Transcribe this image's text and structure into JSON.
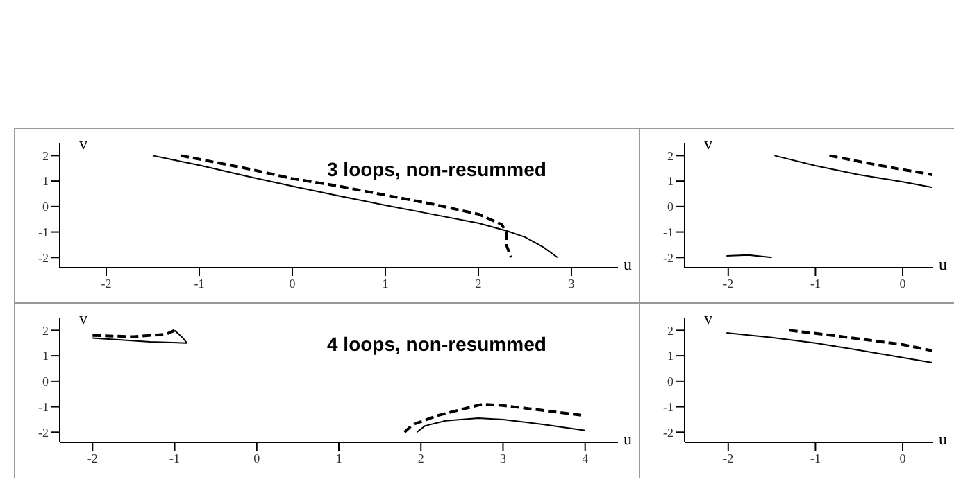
{
  "chart_data": [
    {
      "type": "line",
      "xlabel": "u",
      "ylabel": "v",
      "annotations": [
        "3 loops, non-resummed"
      ],
      "xlim": [
        -2.5,
        3.5
      ],
      "ylim": [
        -2.4,
        2.5
      ],
      "xticks": [
        -2,
        -1,
        0,
        1,
        2,
        3
      ],
      "yticks": [
        -2,
        -1,
        0,
        1,
        2
      ],
      "series": [
        {
          "color": "#000000",
          "line_style": "solid",
          "x": [
            -1.5,
            -1,
            -0.5,
            0,
            0.5,
            1,
            1.5,
            2,
            2.3,
            2.5,
            2.7,
            2.85
          ],
          "values": [
            2.0,
            1.62,
            1.2,
            0.8,
            0.42,
            0.05,
            -0.3,
            -0.65,
            -0.95,
            -1.2,
            -1.6,
            -2.0
          ]
        },
        {
          "color": "#000000",
          "line_style": "dashed",
          "x": [
            -1.2,
            -0.5,
            0,
            0.5,
            1,
            1.5,
            2,
            2.25,
            2.3,
            2.3,
            2.35
          ],
          "values": [
            2.0,
            1.5,
            1.1,
            0.8,
            0.45,
            0.1,
            -0.3,
            -0.7,
            -1.0,
            -1.5,
            -2.0
          ]
        }
      ]
    },
    {
      "type": "line",
      "xlabel": "u",
      "ylabel": "v",
      "xlim": [
        -2.5,
        0.35
      ],
      "ylim": [
        -2.4,
        2.5
      ],
      "xticks": [
        -2,
        -1,
        0
      ],
      "yticks": [
        -2,
        -1,
        0,
        1,
        2
      ],
      "series": [
        {
          "color": "#000000",
          "line_style": "solid",
          "x": [
            -1.47,
            -1,
            -0.5,
            0,
            0.34
          ],
          "values": [
            2.0,
            1.6,
            1.25,
            0.97,
            0.75
          ]
        },
        {
          "color": "#000000",
          "line_style": "dashed",
          "x": [
            -0.84,
            -0.4,
            0,
            0.34
          ],
          "values": [
            2.0,
            1.7,
            1.45,
            1.25
          ]
        },
        {
          "color": "#000000",
          "line_style": "solid",
          "x": [
            -2.02,
            -1.77,
            -1.5
          ],
          "values": [
            -1.94,
            -1.9,
            -2.0
          ]
        }
      ]
    },
    {
      "type": "line",
      "xlabel": "u",
      "ylabel": "v",
      "annotations": [
        "4 loops, non-resummed"
      ],
      "xlim": [
        -2.4,
        4.4
      ],
      "ylim": [
        -2.4,
        2.5
      ],
      "xticks": [
        -2,
        -1,
        0,
        1,
        2,
        3,
        4
      ],
      "yticks": [
        -2,
        -1,
        0,
        1,
        2
      ],
      "series": [
        {
          "color": "#000000",
          "line_style": "dashed",
          "x": [
            -2,
            -1.5,
            -1.1,
            -1.0
          ],
          "values": [
            1.8,
            1.75,
            1.85,
            2.0
          ]
        },
        {
          "color": "#000000",
          "line_style": "solid",
          "x": [
            -1.0,
            -0.9,
            -0.85,
            -1.3,
            -2
          ],
          "values": [
            2.0,
            1.7,
            1.5,
            1.55,
            1.7
          ]
        },
        {
          "color": "#000000",
          "line_style": "dashed",
          "x": [
            1.8,
            1.9,
            2.2,
            2.5,
            2.75,
            3,
            3.5,
            4
          ],
          "values": [
            -2.0,
            -1.7,
            -1.35,
            -1.1,
            -0.9,
            -0.95,
            -1.15,
            -1.35
          ]
        },
        {
          "color": "#000000",
          "line_style": "solid",
          "x": [
            1.95,
            2.05,
            2.3,
            2.7,
            3,
            3.5,
            4
          ],
          "values": [
            -2.0,
            -1.75,
            -1.55,
            -1.45,
            -1.5,
            -1.7,
            -1.93
          ]
        }
      ]
    },
    {
      "type": "line",
      "xlabel": "u",
      "ylabel": "v",
      "xlim": [
        -2.5,
        0.35
      ],
      "ylim": [
        -2.4,
        2.5
      ],
      "xticks": [
        -2,
        -1,
        0
      ],
      "yticks": [
        -2,
        -1,
        0,
        1,
        2
      ],
      "series": [
        {
          "color": "#000000",
          "line_style": "solid",
          "x": [
            -2.02,
            -1.5,
            -1,
            -0.5,
            0,
            0.34
          ],
          "values": [
            1.9,
            1.72,
            1.5,
            1.22,
            0.93,
            0.73
          ]
        },
        {
          "color": "#000000",
          "line_style": "dashed",
          "x": [
            -1.3,
            -0.8,
            -0.4,
            0,
            0.34
          ],
          "values": [
            2.0,
            1.8,
            1.62,
            1.44,
            1.2
          ]
        }
      ]
    }
  ]
}
